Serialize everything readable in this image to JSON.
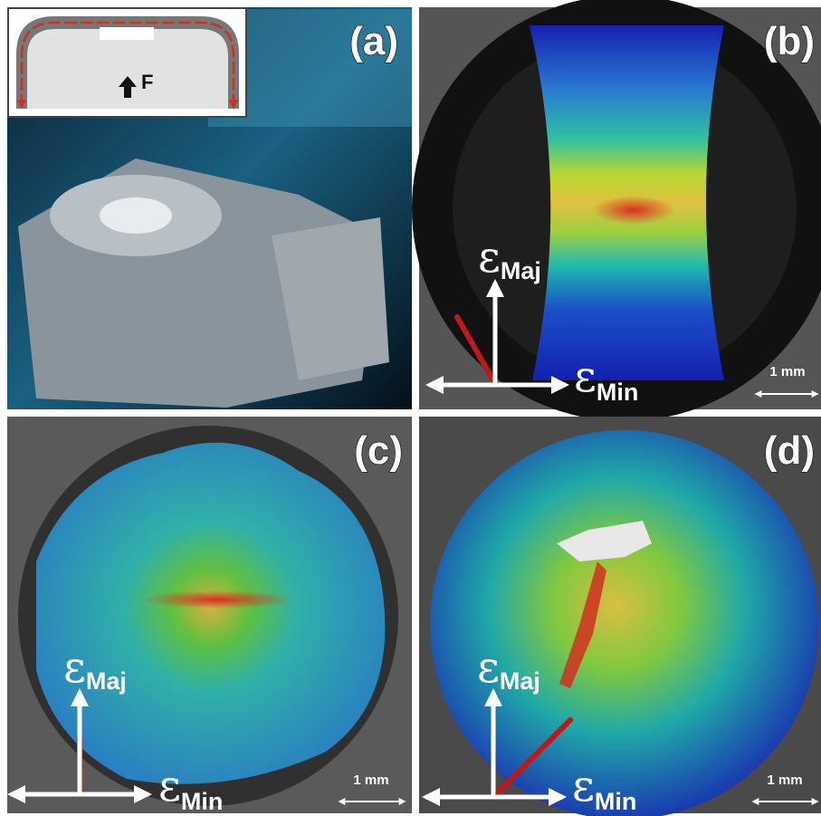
{
  "panels": [
    {
      "label": "(a)",
      "force_label": "F"
    },
    {
      "label": "(b)",
      "major_axis": {
        "symbol": "ε",
        "subscript": "Maj"
      },
      "minor_axis": {
        "symbol": "ε",
        "subscript": "Min"
      },
      "scale_bar": "1 mm"
    },
    {
      "label": "(c)",
      "major_axis": {
        "symbol": "ε",
        "subscript": "Maj"
      },
      "minor_axis": {
        "symbol": "ε",
        "subscript": "Min"
      },
      "scale_bar": "1 mm"
    },
    {
      "label": "(d)",
      "major_axis": {
        "symbol": "ε",
        "subscript": "Maj"
      },
      "minor_axis": {
        "symbol": "ε",
        "subscript": "Min"
      },
      "scale_bar": "1 mm"
    }
  ]
}
